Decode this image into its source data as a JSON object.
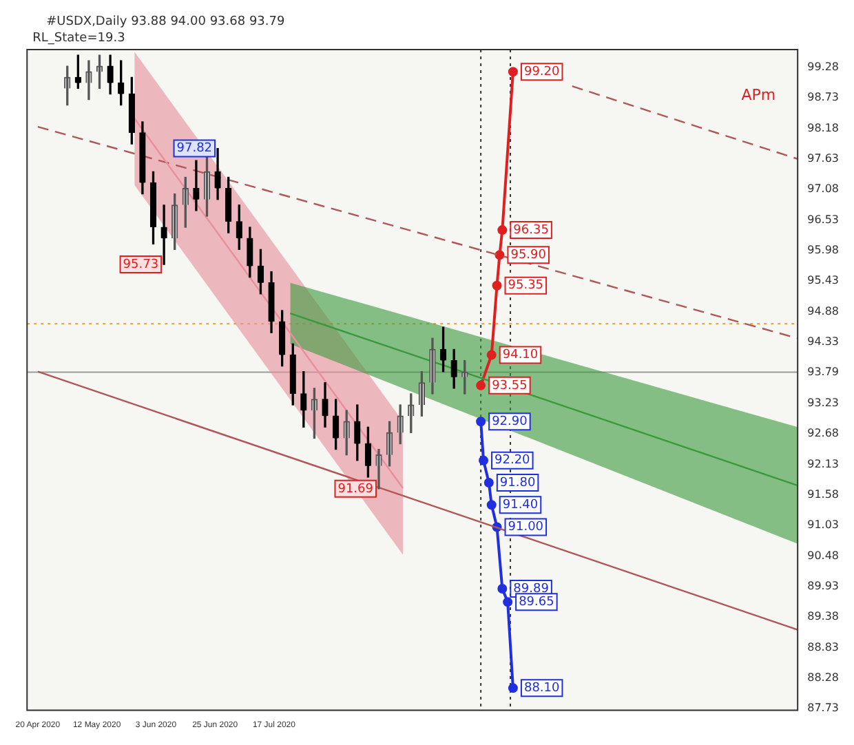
{
  "chart_data": {
    "type": "candlestick",
    "title": "#USDX,Daily 93.88 94.00 93.68 93.79",
    "x": [
      "2020-05-01",
      "2020-05-05",
      "2020-05-09",
      "2020-05-13",
      "2020-05-17",
      "2020-05-21",
      "2020-05-25",
      "2020-05-29",
      "2020-06-02",
      "2020-06-06",
      "2020-06-10",
      "2020-06-14",
      "2020-06-18",
      "2020-06-22",
      "2020-06-26",
      "2020-06-30",
      "2020-07-04",
      "2020-07-08",
      "2020-07-12",
      "2020-07-16",
      "2020-07-20",
      "2020-07-24",
      "2020-07-28",
      "2020-08-01",
      "2020-08-05",
      "2020-08-09",
      "2020-08-13",
      "2020-08-17",
      "2020-08-21",
      "2020-08-25",
      "2020-08-29",
      "2020-09-02",
      "2020-09-06",
      "2020-09-10",
      "2020-09-14",
      "2020-09-18",
      "2020-09-22",
      "2020-09-26"
    ],
    "ohlc": [
      [
        98.9,
        99.3,
        98.6,
        99.1
      ],
      [
        99.1,
        99.5,
        98.9,
        99.0
      ],
      [
        99.0,
        99.4,
        98.7,
        99.2
      ],
      [
        99.2,
        99.5,
        98.9,
        99.3
      ],
      [
        99.3,
        99.5,
        98.8,
        99.0
      ],
      [
        99.0,
        99.4,
        98.6,
        98.8
      ],
      [
        98.8,
        99.1,
        97.9,
        98.1
      ],
      [
        98.1,
        98.3,
        97.0,
        97.2
      ],
      [
        97.2,
        97.4,
        96.1,
        96.4
      ],
      [
        96.4,
        96.8,
        95.73,
        96.2
      ],
      [
        96.2,
        97.0,
        96.0,
        96.8
      ],
      [
        96.8,
        97.3,
        96.4,
        97.1
      ],
      [
        97.1,
        97.6,
        96.7,
        96.9
      ],
      [
        96.9,
        97.7,
        96.6,
        97.4
      ],
      [
        97.4,
        97.82,
        96.9,
        97.1
      ],
      [
        97.1,
        97.3,
        96.3,
        96.5
      ],
      [
        96.5,
        96.8,
        96.0,
        96.2
      ],
      [
        96.2,
        96.4,
        95.5,
        95.7
      ],
      [
        95.7,
        96.0,
        95.2,
        95.4
      ],
      [
        95.4,
        95.6,
        94.5,
        94.7
      ],
      [
        94.7,
        94.9,
        93.9,
        94.1
      ],
      [
        94.1,
        94.3,
        93.2,
        93.4
      ],
      [
        93.4,
        93.8,
        92.8,
        93.1
      ],
      [
        93.1,
        93.5,
        92.6,
        93.3
      ],
      [
        93.3,
        93.6,
        92.8,
        93.0
      ],
      [
        93.0,
        93.3,
        92.4,
        92.6
      ],
      [
        92.6,
        93.1,
        92.3,
        92.9
      ],
      [
        92.9,
        93.2,
        92.2,
        92.5
      ],
      [
        92.5,
        92.8,
        91.9,
        92.1
      ],
      [
        92.1,
        92.4,
        91.69,
        92.3
      ],
      [
        92.3,
        92.9,
        92.1,
        92.7
      ],
      [
        92.7,
        93.2,
        92.5,
        93.0
      ],
      [
        93.0,
        93.4,
        92.7,
        93.2
      ],
      [
        93.2,
        93.8,
        93.0,
        93.6
      ],
      [
        93.6,
        94.4,
        93.4,
        94.2
      ],
      [
        94.2,
        94.6,
        93.8,
        94.0
      ],
      [
        94.0,
        94.2,
        93.5,
        93.7
      ],
      [
        93.7,
        94.0,
        93.4,
        93.79
      ]
    ],
    "series": [
      {
        "type": "line",
        "color": "#3a9a3a",
        "x": [
          "2020-07-23",
          "2021-01-28"
        ],
        "values": [
          94.85,
          91.75
        ],
        "lower": [
          94.3,
          90.7
        ],
        "upper": [
          95.4,
          92.8
        ]
      },
      {
        "type": "line",
        "color": "#e88f9a",
        "x": [
          "2020-05-26",
          "2020-09-03"
        ],
        "values": [
          98.36,
          91.7
        ],
        "lower": [
          97.16,
          90.5
        ],
        "upper": [
          99.56,
          92.9
        ]
      },
      {
        "type": "line",
        "color": "#b05858",
        "x": [
          "2020-04-20",
          "2021-01-28"
        ],
        "values": [
          93.8,
          89.15
        ]
      },
      {
        "type": "line",
        "color": "#b05858",
        "line_style": "dashed",
        "x": [
          "2020-04-20",
          "2021-01-28"
        ],
        "values": [
          98.21,
          94.4
        ]
      },
      {
        "type": "line",
        "color": "#b05858",
        "line_style": "dashed",
        "x": [
          "2020-11-05",
          "2021-01-28"
        ],
        "values": [
          98.94,
          97.63
        ]
      },
      {
        "type": "line",
        "color": "#e02020",
        "marker": "circle",
        "x": [
          "2020-10-02",
          "2020-10-06",
          "2020-10-08",
          "2020-10-09",
          "2020-10-10",
          "2020-10-14"
        ],
        "values": [
          93.55,
          94.1,
          95.35,
          95.9,
          96.35,
          99.2
        ],
        "value_labels": [
          "93.55",
          "94.10",
          "95.35",
          "95.90",
          "96.35",
          "99.20"
        ]
      },
      {
        "type": "line",
        "color": "#2030e0",
        "marker": "circle",
        "x": [
          "2020-10-02",
          "2020-10-03",
          "2020-10-05",
          "2020-10-06",
          "2020-10-08",
          "2020-10-10",
          "2020-10-12",
          "2020-10-14"
        ],
        "values": [
          92.9,
          92.2,
          91.8,
          91.4,
          91.0,
          89.89,
          89.65,
          88.1
        ],
        "value_labels": [
          "92.90",
          "92.20",
          "91.80",
          "91.40",
          "91.00",
          "89.89",
          "89.65",
          "88.10"
        ]
      }
    ],
    "ref_lines": [
      {
        "axis": "x",
        "value": "2020-10-02",
        "color": "#333333",
        "line_style": "dotted"
      },
      {
        "axis": "x",
        "value": "2020-10-13",
        "color": "#333333",
        "line_style": "dotted"
      },
      {
        "axis": "y",
        "value": 94.66,
        "color": "#e0a030",
        "line_style": "dotted"
      },
      {
        "axis": "y",
        "value": 93.79,
        "color": "#999999",
        "line_style": "solid"
      }
    ],
    "annotations": [
      "RL_State=19.3",
      "APm",
      {
        "text": "97.82",
        "x": "2020-06-26",
        "y": 97.82
      },
      {
        "text": "95.73",
        "x": "2020-06-06",
        "y": 95.73
      },
      {
        "text": "91.69",
        "x": "2020-08-25",
        "y": 91.69
      }
    ],
    "xlim": [
      "2020-04-16",
      "2021-01-28"
    ],
    "ylim": [
      87.7,
      99.6
    ],
    "xticks": [
      {
        "value": "2020-04-20",
        "label": "20 Apr 2020"
      },
      {
        "value": "2020-05-12",
        "label": "12 May 2020"
      },
      {
        "value": "2020-06-03",
        "label": "3 Jun 2020"
      },
      {
        "value": "2020-06-25",
        "label": "25 Jun 2020"
      },
      {
        "value": "2020-07-17",
        "label": "17 Jul 2020"
      }
    ],
    "yticks": [
      99.28,
      98.73,
      98.18,
      97.63,
      97.08,
      96.53,
      95.98,
      95.43,
      94.88,
      94.33,
      93.79,
      93.23,
      92.68,
      92.13,
      91.58,
      91.03,
      90.48,
      89.93,
      89.38,
      88.83,
      88.28,
      87.73
    ],
    "grid": false
  }
}
